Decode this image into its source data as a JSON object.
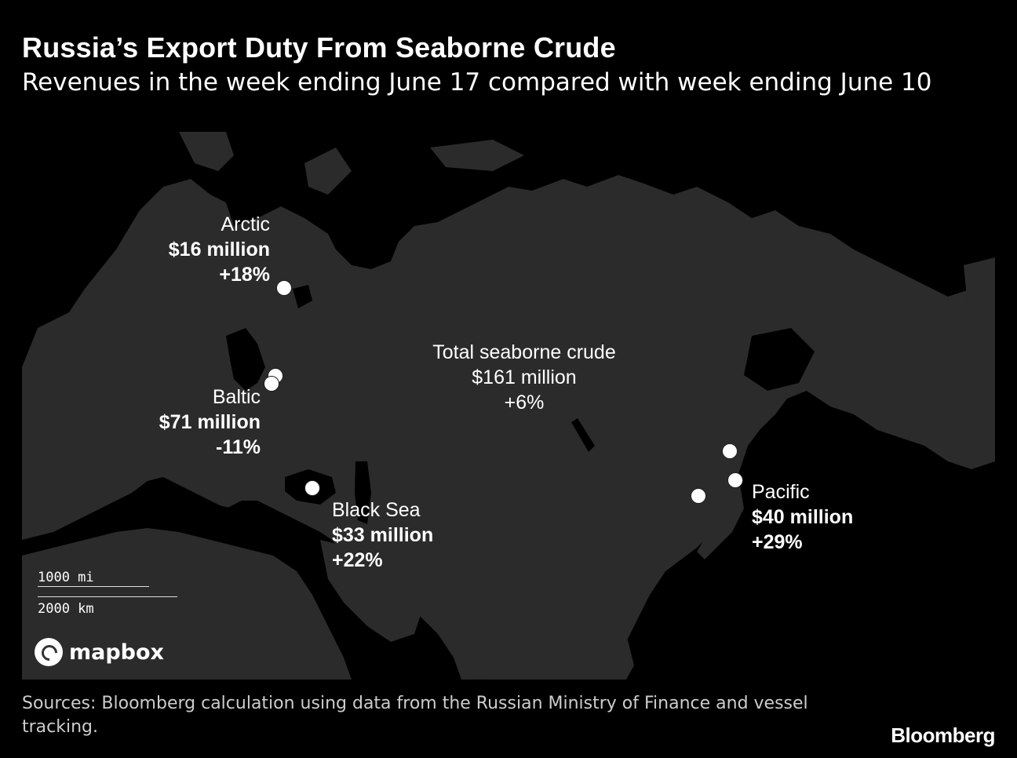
{
  "header": {
    "title": "Russia’s Export Duty From Seaborne Crude",
    "subtitle": "Revenues in the week ending June 17 compared with week ending June 10"
  },
  "map": {
    "land_color": "#2b2b2b",
    "water_color": "#000000",
    "dot_color": "#ffffff",
    "regions": [
      {
        "name": "Arctic",
        "value": "$16 million",
        "change": "+18%"
      },
      {
        "name": "Baltic",
        "value": "$71 million",
        "change": "-11%"
      },
      {
        "name": "Black Sea",
        "value": "$33 million",
        "change": "+22%"
      },
      {
        "name": "Pacific",
        "value": "$40 million",
        "change": "+29%"
      }
    ],
    "total": {
      "name": "Total seaborne crude",
      "value": "$161 million",
      "change": "+6%"
    },
    "scale": {
      "miles": "1000 mi",
      "km": "2000 km"
    },
    "attribution": "mapbox"
  },
  "footer": {
    "source": "Sources: Bloomberg calculation using data from the Russian Ministry of Finance and vessel tracking.",
    "brand": "Bloomberg"
  }
}
